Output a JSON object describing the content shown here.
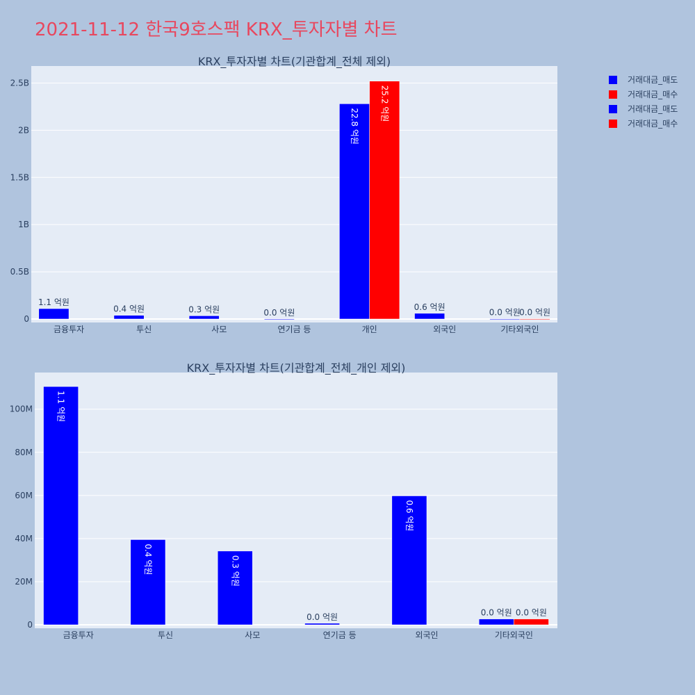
{
  "main_title": "2021-11-12 한국9호스팩 KRX_투자자별 차트",
  "colors": {
    "sell": "#0000ff",
    "buy": "#ff0000",
    "plot_bg": "#e5ecf6",
    "page_bg": "#b0c4de",
    "title": "#e8475e"
  },
  "legend": [
    {
      "label": "거래대금_매도",
      "color": "#0000ff"
    },
    {
      "label": "거래대금_매수",
      "color": "#ff0000"
    },
    {
      "label": "거래대금_매도",
      "color": "#0000ff"
    },
    {
      "label": "거래대금_매수",
      "color": "#ff0000"
    }
  ],
  "chart_data": [
    {
      "type": "bar",
      "title": "KRX_투자자별 차트(기관합계_전체 제외)",
      "categories": [
        "금융투자",
        "투신",
        "사모",
        "연기금 등",
        "개인",
        "외국인",
        "기타외국인"
      ],
      "ylim": [
        0,
        2680000000
      ],
      "yticks": [
        0,
        500000000,
        1000000000,
        1500000000,
        2000000000,
        2500000000
      ],
      "ytick_labels": [
        "0",
        "0.5B",
        "1B",
        "1.5B",
        "2B",
        "2.5B"
      ],
      "grid": true,
      "legend_position": "top-right",
      "series": [
        {
          "name": "거래대금_매도",
          "color": "#0000ff",
          "values": [
            110000000,
            39000000,
            34000000,
            500000,
            2280000000,
            60000000,
            2500000
          ],
          "labels": [
            "1.1 억원",
            "0.4 억원",
            "0.3 억원",
            "0.0 억원",
            "22.8 억원",
            "0.6 억원",
            "0.0 억원"
          ]
        },
        {
          "name": "거래대금_매수",
          "color": "#ff0000",
          "values": [
            0,
            0,
            0,
            0,
            2520000000,
            0,
            2500000
          ],
          "labels": [
            "",
            "",
            "",
            "",
            "25.2 억원",
            "",
            "0.0 억원"
          ]
        }
      ]
    },
    {
      "type": "bar",
      "title": "KRX_투자자별 차트(기관합계_전체_개인 제외)",
      "categories": [
        "금융투자",
        "투신",
        "사모",
        "연기금 등",
        "외국인",
        "기타외국인"
      ],
      "ylim": [
        0,
        117000000
      ],
      "yticks": [
        0,
        20000000,
        40000000,
        60000000,
        80000000,
        100000000
      ],
      "ytick_labels": [
        "0",
        "20M",
        "40M",
        "60M",
        "80M",
        "100M"
      ],
      "grid": true,
      "series": [
        {
          "name": "거래대금_매도",
          "color": "#0000ff",
          "values": [
            110500000,
            39500000,
            34200000,
            700000,
            59800000,
            2700000
          ],
          "labels": [
            "1.1 억원",
            "0.4 억원",
            "0.3 억원",
            "0.0 억원",
            "0.6 억원",
            "0.0 억원"
          ]
        },
        {
          "name": "거래대금_매수",
          "color": "#ff0000",
          "values": [
            0,
            0,
            0,
            0,
            0,
            2700000
          ],
          "labels": [
            "",
            "",
            "",
            "",
            "",
            "0.0 억원"
          ]
        }
      ]
    }
  ]
}
